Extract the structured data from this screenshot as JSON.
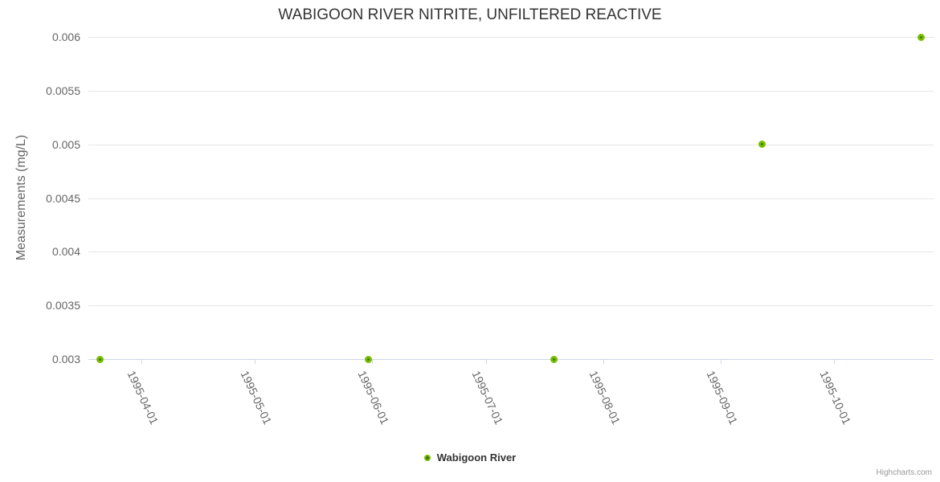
{
  "chart_data": {
    "type": "scatter",
    "title": "WABIGOON RIVER NITRITE, UNFILTERED REACTIVE",
    "xlabel": "",
    "ylabel": "Measurements (mg/L)",
    "x_range": [
      "1995-03-18",
      "1995-10-27"
    ],
    "ylim": [
      0.003,
      0.006
    ],
    "grid": true,
    "legend_position": "bottom-center",
    "x_ticks": [
      {
        "date": "1995-04-01",
        "label": "1995-04-01"
      },
      {
        "date": "1995-05-01",
        "label": "1995-05-01"
      },
      {
        "date": "1995-06-01",
        "label": "1995-06-01"
      },
      {
        "date": "1995-07-01",
        "label": "1995-07-01"
      },
      {
        "date": "1995-08-01",
        "label": "1995-08-01"
      },
      {
        "date": "1995-09-01",
        "label": "1995-09-01"
      },
      {
        "date": "1995-10-01",
        "label": "1995-10-01"
      }
    ],
    "y_ticks": [
      {
        "value": 0.003,
        "label": "0.003"
      },
      {
        "value": 0.0035,
        "label": "0.0035"
      },
      {
        "value": 0.004,
        "label": "0.004"
      },
      {
        "value": 0.0045,
        "label": "0.0045"
      },
      {
        "value": 0.005,
        "label": "0.005"
      },
      {
        "value": 0.0055,
        "label": "0.0055"
      },
      {
        "value": 0.006,
        "label": "0.006"
      }
    ],
    "series": [
      {
        "name": "Wabigoon River",
        "points": [
          {
            "date": "1995-03-21",
            "value": 0.003
          },
          {
            "date": "1995-05-31",
            "value": 0.003
          },
          {
            "date": "1995-07-19",
            "value": 0.003
          },
          {
            "date": "1995-09-12",
            "value": 0.005
          },
          {
            "date": "1995-10-24",
            "value": 0.006
          }
        ]
      }
    ]
  },
  "credits": "Highcharts.com",
  "colors": {
    "background": "#ffffff",
    "title_text": "#333333",
    "axis_text": "#666666",
    "legend_text": "#333333",
    "credit_text": "#999999",
    "gridline": "#e6e6e6",
    "axis_line": "#ccd6eb",
    "marker_outer": "#78BE00",
    "marker_inner": "#467800"
  }
}
